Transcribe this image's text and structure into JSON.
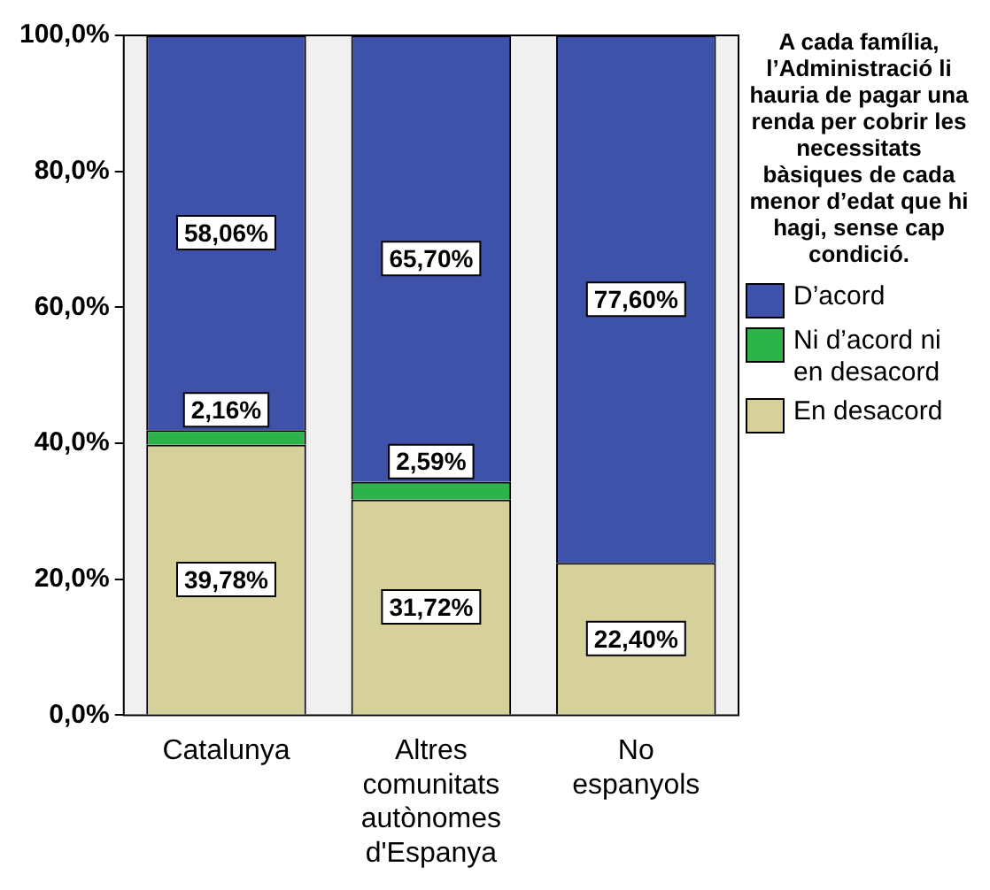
{
  "chart_data": {
    "type": "bar",
    "stacked": true,
    "categories": [
      "Catalunya",
      "Altres comunitats autònomes d'Espanya",
      "No espanyols"
    ],
    "series": [
      {
        "name": "En desacord",
        "color": "#d6d09a",
        "values": [
          39.78,
          31.72,
          22.4
        ],
        "value_labels": [
          "39,78%",
          "31,72%",
          "22,40%"
        ]
      },
      {
        "name": "Ni d’acord ni en desacord",
        "color": "#2cb34a",
        "values": [
          2.16,
          2.59,
          null
        ],
        "value_labels": [
          "2,16%",
          "2,59%",
          null
        ]
      },
      {
        "name": "D’acord",
        "color": "#3d52a8",
        "values": [
          58.06,
          65.7,
          77.6
        ],
        "value_labels": [
          "58,06%",
          "65,70%",
          "77,60%"
        ]
      }
    ],
    "ylim": [
      0,
      100
    ],
    "yticks": [
      {
        "value": 0,
        "label": "0,0%"
      },
      {
        "value": 20,
        "label": "20,0%"
      },
      {
        "value": 40,
        "label": "40,0%"
      },
      {
        "value": 60,
        "label": "60,0%"
      },
      {
        "value": 80,
        "label": "80,0%"
      },
      {
        "value": 100,
        "label": "100,0%"
      }
    ],
    "grid": false,
    "legend": "right",
    "legend_title": "A cada família, l’Administració li hauria de pagar una renda per cobrir les necessitats bàsiques de cada menor d’edat que hi hagi, sense cap condició."
  }
}
